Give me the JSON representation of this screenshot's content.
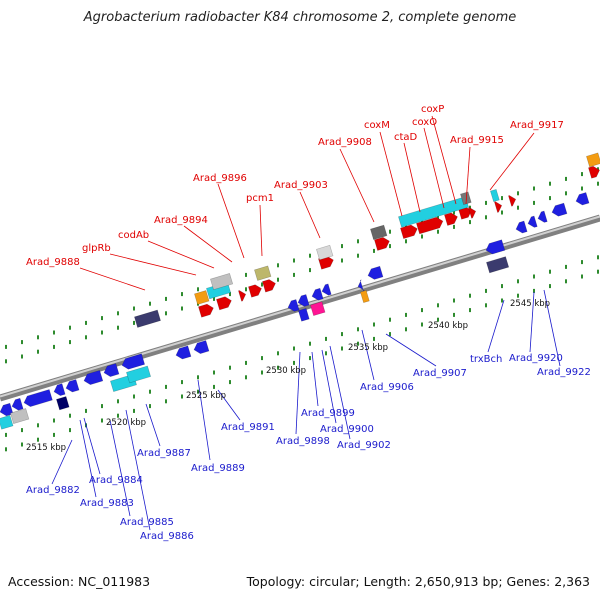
{
  "title": "Agrobacterium radiobacter K84 chromosome 2, complete genome",
  "accession": "Accession: NC_011983",
  "summary": "Topology: circular; Length: 2,650,913 bp; Genes: 2,363",
  "colors": {
    "top_label": "#e00000",
    "bottom_label": "#1a1acc",
    "backbone": "#999999",
    "tick_dots": "#2e8b2e"
  },
  "kbp_marks": [
    "2515 kbp",
    "2520 kbp",
    "2525 kbp",
    "2530 kbp",
    "2535 kbp",
    "2540 kbp",
    "2545 kbp"
  ],
  "top_strand_genes": [
    "Arad_9888",
    "glpRb",
    "codAb",
    "Arad_9894",
    "Arad_9896",
    "pcm1",
    "Arad_9903",
    "Arad_9908",
    "coxM",
    "ctaD",
    "coxO",
    "coxP",
    "Arad_9915",
    "Arad_9917"
  ],
  "bottom_strand_genes": [
    "Arad_9882",
    "Arad_9884",
    "Arad_9883",
    "Arad_9885",
    "Arad_9886",
    "Arad_9887",
    "Arad_9889",
    "Arad_9891",
    "Arad_9898",
    "Arad_9899",
    "Arad_9900",
    "Arad_9902",
    "Arad_9906",
    "Arad_9907",
    "trxBch",
    "Arad_9920",
    "Arad_9922"
  ]
}
